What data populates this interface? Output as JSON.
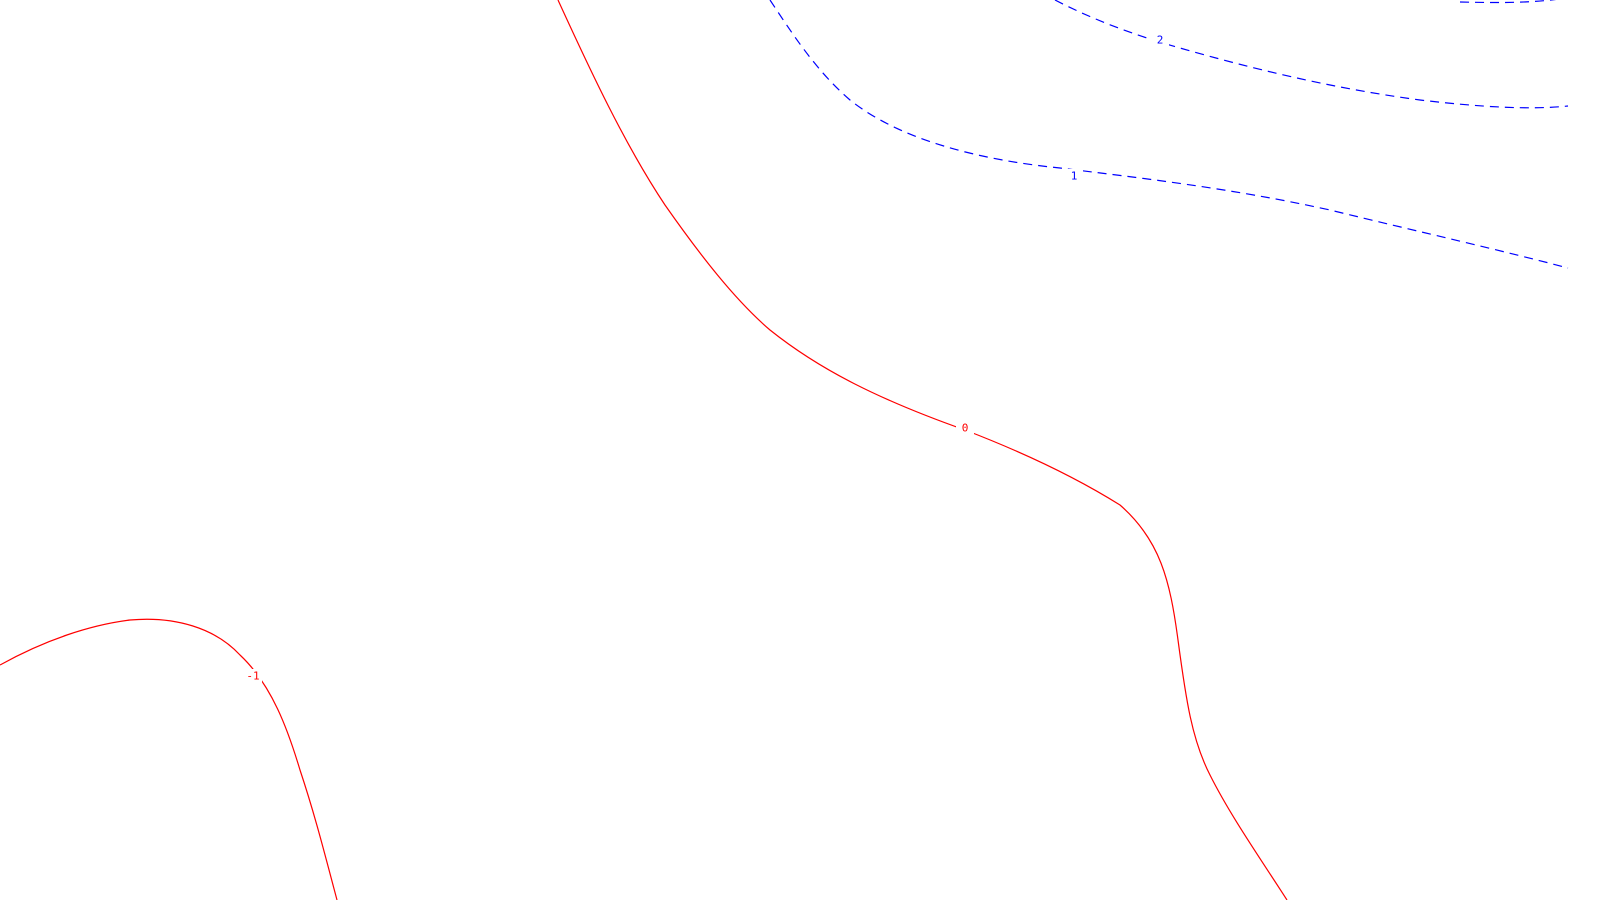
{
  "chart_data": {
    "type": "contour",
    "title": "",
    "xlabel": "",
    "ylabel": "",
    "grid": false,
    "legend": "none",
    "colors": {
      "positive": "#0000ff",
      "non_positive": "#ff0000",
      "background": "#ffffff"
    },
    "levels": [
      {
        "value": 2,
        "label": "2",
        "color": "#0000ff",
        "dashed": true
      },
      {
        "value": 1,
        "label": "1",
        "color": "#0000ff",
        "dashed": true
      },
      {
        "value": 0,
        "label": "0",
        "color": "#ff0000",
        "dashed": false
      },
      {
        "value": -1,
        "label": "-1",
        "color": "#ff0000",
        "dashed": false
      }
    ]
  }
}
